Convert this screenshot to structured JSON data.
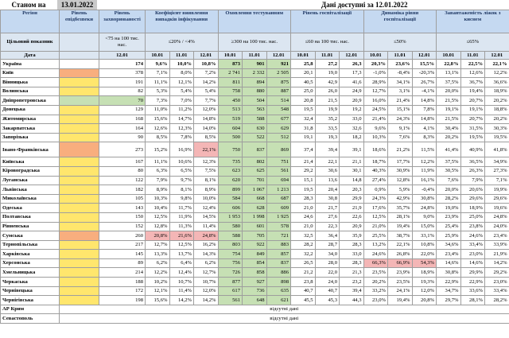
{
  "header": {
    "as_of_label": "Станом на",
    "as_of_date": "13.01.2022",
    "available": "Дані доступні за 12.01.2022"
  },
  "table": {
    "columns": [
      "Регіон",
      "Рівень епідбезпеки",
      "Рівень захворюваності",
      "Коефіцієнт виявлення випадків інфікування",
      "Охоплення тестуванням",
      "Рівень госпіталізації",
      "Динаміка рівня госпіталізації",
      "Завантаженість ліжок з киснем"
    ],
    "target_label": "Цільовий показник",
    "targets": [
      "<75 на 100 тис. нас.",
      "≤20% / <4%",
      "≥300 на 100 тис. нас.",
      "≤60 на 100 тис. нас.",
      "≤50%",
      "≤65%"
    ],
    "date_label": "Дата",
    "dates": [
      "12.01",
      "10.01",
      "11.01",
      "12.01",
      "10.01",
      "11.01",
      "12.01",
      "10.01",
      "11.01",
      "12.01",
      "10.01",
      "11.01",
      "12.01",
      "10.01",
      "11.01",
      "12.01"
    ],
    "rows": [
      {
        "region": "Україна",
        "cells": [
          "174",
          "9,6%",
          "10,0%",
          "10,8%",
          "873",
          "901",
          "921",
          "25,8",
          "27,2",
          "26,3",
          "20,3%",
          "23,6%",
          "15,5%",
          "22,8%",
          "22,5%",
          "22,1%"
        ]
      },
      {
        "region": "Київ",
        "cells": [
          "378",
          "7,1%",
          "8,0%",
          "7,2%",
          "2 741",
          "2 332",
          "2 505",
          "20,1",
          "19,0",
          "17,3",
          "-1,0%",
          "-8,4%",
          "-20,3%",
          "13,1%",
          "12,6%",
          "12,2%"
        ]
      },
      {
        "region": "Вінницька",
        "cells": [
          "191",
          "11,1%",
          "12,1%",
          "14,2%",
          "811",
          "894",
          "875",
          "40,5",
          "42,9",
          "41,6",
          "28,9%",
          "34,1%",
          "26,7%",
          "37,5%",
          "36,7%",
          "36,6%"
        ]
      },
      {
        "region": "Волинська",
        "cells": [
          "82",
          "5,3%",
          "5,4%",
          "5,4%",
          "758",
          "880",
          "887",
          "25,0",
          "26,0",
          "24,9",
          "12,7%",
          "3,1%",
          "-4,1%",
          "20,0%",
          "19,4%",
          "18,9%"
        ]
      },
      {
        "region": "Дніпропетровська",
        "cells": [
          "70",
          "7,3%",
          "7,0%",
          "7,7%",
          "450",
          "504",
          "514",
          "20,8",
          "21,5",
          "20,9",
          "16,0%",
          "21,4%",
          "14,8%",
          "21,5%",
          "20,7%",
          "20,2%"
        ]
      },
      {
        "region": "Донецька",
        "cells": [
          "129",
          "11,0%",
          "11,2%",
          "12,0%",
          "513",
          "563",
          "548",
          "19,5",
          "19,9",
          "19,2",
          "24,5%",
          "15,1%",
          "7,8%",
          "19,1%",
          "19,1%",
          "18,8%"
        ]
      },
      {
        "region": "Житомирська",
        "cells": [
          "168",
          "15,6%",
          "14,7%",
          "14,8%",
          "519",
          "588",
          "677",
          "32,4",
          "35,2",
          "33,0",
          "21,4%",
          "24,3%",
          "14,8%",
          "21,5%",
          "20,7%",
          "20,2%"
        ]
      },
      {
        "region": "Закарпатська",
        "cells": [
          "164",
          "12,6%",
          "12,3%",
          "14,0%",
          "604",
          "630",
          "629",
          "31,8",
          "33,5",
          "32,6",
          "9,6%",
          "9,1%",
          "4,1%",
          "30,4%",
          "31,5%",
          "30,3%"
        ]
      },
      {
        "region": "Запорізька",
        "cells": [
          "90",
          "8,5%",
          "7,8%",
          "8,5%",
          "500",
          "522",
          "512",
          "19,1",
          "19,3",
          "18,2",
          "10,3%",
          "7,6%",
          "8,3%",
          "20,2%",
          "19,5%",
          "19,5%"
        ]
      },
      {
        "region": "Івано-Франківська",
        "cells": [
          "273",
          "15,2%",
          "16,9%",
          "22,1%",
          "750",
          "837",
          "869",
          "37,4",
          "39,4",
          "39,1",
          "18,6%",
          "21,2%",
          "11,5%",
          "41,4%",
          "40,9%",
          "41,8%"
        ]
      },
      {
        "region": "Київська",
        "cells": [
          "167",
          "11,1%",
          "10,6%",
          "12,3%",
          "735",
          "802",
          "751",
          "21,4",
          "22,1",
          "21,1",
          "18,7%",
          "17,7%",
          "12,2%",
          "37,5%",
          "36,5%",
          "34,9%"
        ]
      },
      {
        "region": "Кіровоградська",
        "cells": [
          "80",
          "6,3%",
          "6,5%",
          "7,5%",
          "623",
          "625",
          "561",
          "29,2",
          "30,6",
          "30,1",
          "40,3%",
          "30,9%",
          "11,9%",
          "30,5%",
          "26,3%",
          "27,3%"
        ]
      },
      {
        "region": "Луганська",
        "cells": [
          "122",
          "7,9%",
          "9,7%",
          "8,1%",
          "620",
          "701",
          "694",
          "15,1",
          "13,6",
          "14,8",
          "27,4%",
          "12,8%",
          "16,1%",
          "7,6%",
          "7,9%",
          "7,1%"
        ]
      },
      {
        "region": "Львівська",
        "cells": [
          "182",
          "8,9%",
          "8,1%",
          "8,9%",
          "899",
          "1 067",
          "1 213",
          "19,5",
          "20,4",
          "20,3",
          "0,9%",
          "5,9%",
          "-0,4%",
          "20,0%",
          "20,6%",
          "19,9%"
        ]
      },
      {
        "region": "Миколаївська",
        "cells": [
          "105",
          "10,3%",
          "9,8%",
          "10,0%",
          "584",
          "668",
          "687",
          "28,3",
          "30,8",
          "29,9",
          "24,3%",
          "42,9%",
          "30,8%",
          "28,2%",
          "29,6%",
          "29,6%"
        ]
      },
      {
        "region": "Одеська",
        "cells": [
          "143",
          "10,4%",
          "11,7%",
          "12,4%",
          "606",
          "628",
          "609",
          "21,0",
          "21,7",
          "21,9",
          "17,6%",
          "35,7%",
          "24,8%",
          "19,0%",
          "18,9%",
          "19,6%"
        ]
      },
      {
        "region": "Полтавська",
        "cells": [
          "150",
          "12,5%",
          "11,9%",
          "14,5%",
          "1 953",
          "1 998",
          "1 925",
          "24,6",
          "27,6",
          "22,6",
          "12,5%",
          "28,1%",
          "9,0%",
          "23,9%",
          "25,0%",
          "24,8%"
        ]
      },
      {
        "region": "Рівненська",
        "cells": [
          "152",
          "12,8%",
          "11,3%",
          "11,4%",
          "580",
          "601",
          "578",
          "21,0",
          "22,3",
          "20,9",
          "21,0%",
          "19,4%",
          "15,0%",
          "25,4%",
          "23,8%",
          "24,0%"
        ]
      },
      {
        "region": "Сумська",
        "cells": [
          "260",
          "20,8%",
          "21,6%",
          "24,8%",
          "588",
          "705",
          "721",
          "32,5",
          "36,4",
          "35,9",
          "25,5%",
          "38,7%",
          "33,1%",
          "25,9%",
          "24,6%",
          "23,4%"
        ]
      },
      {
        "region": "Тернопільська",
        "cells": [
          "217",
          "12,7%",
          "12,5%",
          "16,2%",
          "803",
          "922",
          "883",
          "28,2",
          "28,7",
          "28,3",
          "13,2%",
          "22,1%",
          "10,8%",
          "34,6%",
          "33,4%",
          "33,9%"
        ]
      },
      {
        "region": "Харківська",
        "cells": [
          "145",
          "13,3%",
          "13,7%",
          "14,3%",
          "754",
          "849",
          "857",
          "32,2",
          "34,0",
          "33,0",
          "24,6%",
          "26,8%",
          "22,0%",
          "23,4%",
          "23,0%",
          "21,9%"
        ]
      },
      {
        "region": "Херсонська",
        "cells": [
          "89",
          "6,2%",
          "6,4%",
          "6,2%",
          "756",
          "854",
          "837",
          "26,5",
          "28,0",
          "28,3",
          "66,3%",
          "66,9%",
          "54,3%",
          "14,6%",
          "14,6%",
          "14,2%"
        ]
      },
      {
        "region": "Хмельницька",
        "cells": [
          "214",
          "12,2%",
          "12,4%",
          "12,7%",
          "726",
          "858",
          "886",
          "21,2",
          "22,0",
          "21,3",
          "23,5%",
          "23,9%",
          "18,9%",
          "30,8%",
          "29,9%",
          "29,2%"
        ]
      },
      {
        "region": "Черкаська",
        "cells": [
          "188",
          "10,2%",
          "10,7%",
          "10,7%",
          "877",
          "927",
          "898",
          "23,8",
          "24,0",
          "23,2",
          "20,2%",
          "23,5%",
          "19,3%",
          "22,9%",
          "22,9%",
          "23,0%"
        ]
      },
      {
        "region": "Чернівецька",
        "cells": [
          "172",
          "12,1%",
          "11,4%",
          "12,0%",
          "617",
          "736",
          "635",
          "40,7",
          "40,7",
          "39,4",
          "33,2%",
          "24,1%",
          "12,0%",
          "34,7%",
          "33,6%",
          "33,4%"
        ]
      },
      {
        "region": "Чернігівська",
        "cells": [
          "198",
          "15,6%",
          "14,2%",
          "14,2%",
          "561",
          "648",
          "621",
          "45,5",
          "45,3",
          "44,3",
          "23,0%",
          "19,4%",
          "20,8%",
          "29,7%",
          "28,1%",
          "28,2%"
        ]
      }
    ],
    "no_data_rows": [
      {
        "region": "АР Крим",
        "text": "відсутні дані"
      },
      {
        "region": "Севастополь",
        "text": "відсутні дані"
      }
    ]
  }
}
